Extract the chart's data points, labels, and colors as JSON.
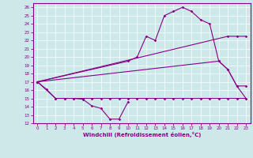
{
  "xlabel": "Windchill (Refroidissement éolien,°C)",
  "xlim": [
    -0.5,
    23.5
  ],
  "ylim": [
    12,
    26.5
  ],
  "xticks": [
    0,
    1,
    2,
    3,
    4,
    5,
    6,
    7,
    8,
    9,
    10,
    11,
    12,
    13,
    14,
    15,
    16,
    17,
    18,
    19,
    20,
    21,
    22,
    23
  ],
  "yticks": [
    12,
    13,
    14,
    15,
    16,
    17,
    18,
    19,
    20,
    21,
    22,
    23,
    24,
    25,
    26
  ],
  "bg_color": "#cce8e8",
  "line_color": "#880088",
  "lines": [
    {
      "x": [
        0,
        1,
        2,
        3,
        4,
        5,
        6,
        7,
        8,
        9,
        10
      ],
      "y": [
        17,
        16.1,
        15,
        15,
        15,
        14.9,
        14.1,
        13.8,
        12.5,
        12.5,
        14.6
      ]
    },
    {
      "x": [
        0,
        2,
        3,
        4,
        5,
        6,
        7,
        8,
        9,
        10,
        11,
        12,
        13,
        14,
        15,
        16,
        17,
        18,
        19,
        20,
        21,
        22,
        23
      ],
      "y": [
        17,
        15,
        15,
        15,
        15,
        15,
        15,
        15,
        15,
        15,
        15,
        15,
        15,
        15,
        15,
        15,
        15,
        15,
        15,
        15,
        15,
        15,
        15
      ]
    },
    {
      "x": [
        0,
        20,
        21,
        22,
        23
      ],
      "y": [
        17,
        19.5,
        18.5,
        16.5,
        16.5
      ]
    },
    {
      "x": [
        0,
        21,
        22,
        23
      ],
      "y": [
        17,
        22.5,
        22.5,
        22.5
      ]
    },
    {
      "x": [
        0,
        10,
        11,
        12,
        13,
        14,
        15,
        16,
        17,
        18,
        19,
        20,
        21,
        22,
        23
      ],
      "y": [
        17,
        19.5,
        20,
        22.5,
        22,
        25,
        25.5,
        26,
        25.5,
        24.5,
        24,
        19.5,
        18.5,
        16.5,
        15
      ]
    }
  ]
}
